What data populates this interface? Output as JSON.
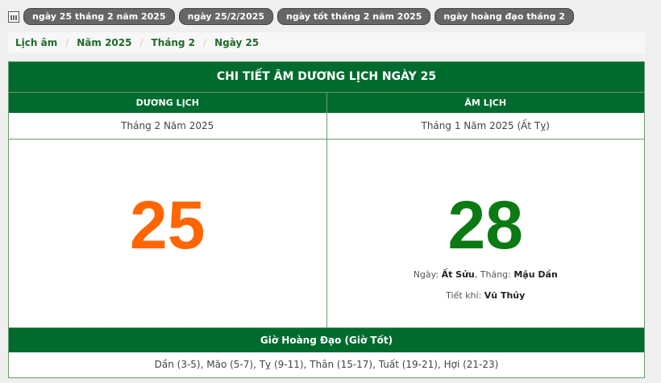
{
  "tags": {
    "items": [
      "ngày 25 tháng 2 năm 2025",
      "ngày 25/2/2025",
      "ngày tốt tháng 2 năm 2025",
      "ngày hoàng đạo tháng 2"
    ]
  },
  "breadcrumb": [
    "Lịch âm",
    "Năm 2025",
    "Tháng 2",
    "Ngày 25"
  ],
  "table": {
    "title": "CHI TIẾT ÂM DƯƠNG LỊCH NGÀY 25",
    "solar_label": "DƯƠNG LỊCH",
    "lunar_label": "ÂM LỊCH",
    "solar_month": "Tháng 2 Năm 2025",
    "lunar_month": "Tháng 1 Năm 2025 (Ất Tỵ)",
    "solar_day": "25",
    "lunar_day": "28",
    "day_label": "Ngày:",
    "day_value": "Ất Sửu",
    "month_label": ", Tháng:",
    "month_value": "Mậu Dần",
    "tietkhi_label": "Tiết khí:",
    "tietkhi_value": "Vũ Thủy",
    "gio_title": "Giờ Hoàng Đạo (Giờ Tốt)",
    "gio_list": "Dần (3-5), Mão (5-7), Tỵ (9-11), Thân (15-17), Tuất (19-21), Hợi (21-23)"
  },
  "colors": {
    "green": "#006b2e",
    "solar": "#ff6600",
    "lunar": "#0b7a12"
  }
}
